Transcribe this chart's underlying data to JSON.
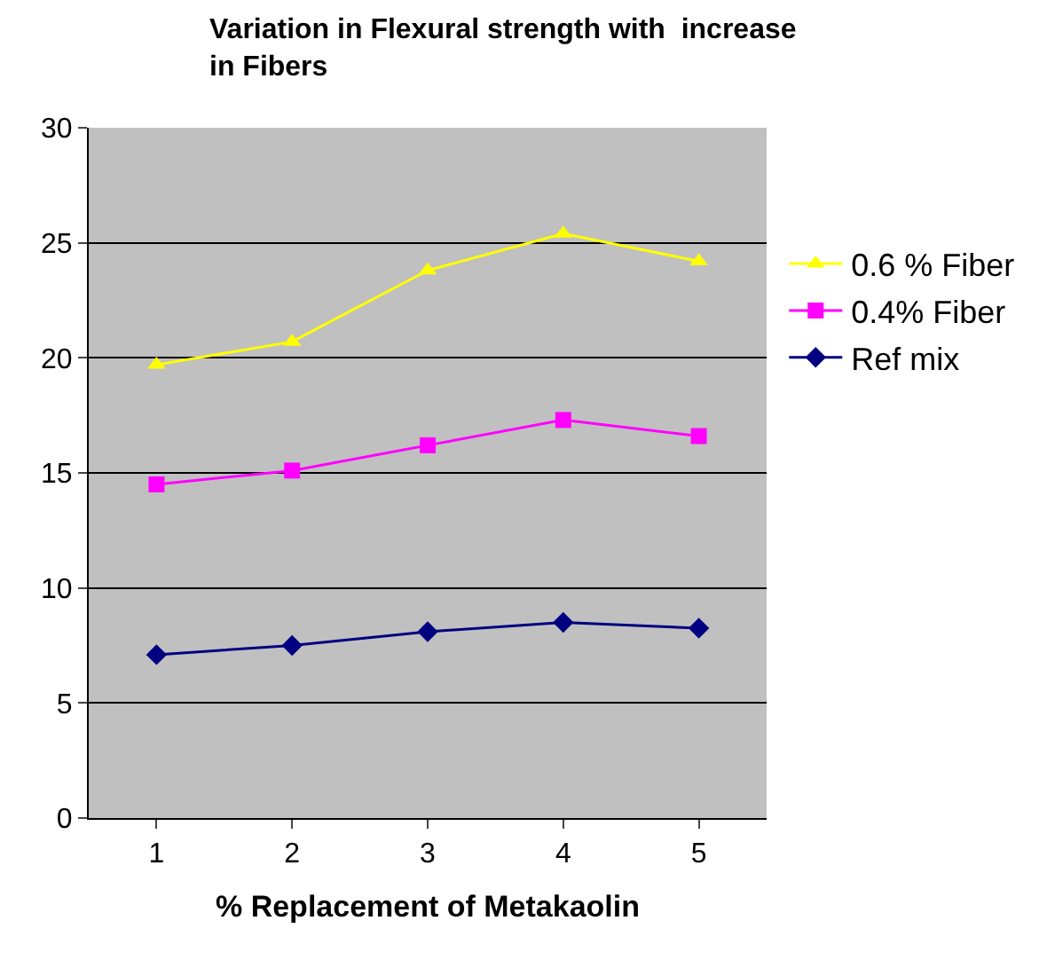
{
  "chart_data": {
    "type": "line",
    "title": "Variation in Flexural strength with  increase in Fibers",
    "xlabel": "% Replacement of Metakaolin",
    "categories": [
      "1",
      "2",
      "3",
      "4",
      "5"
    ],
    "series": [
      {
        "name": "0.6 % Fiber",
        "color": "#ffff00",
        "marker": "triangle",
        "values": [
          19.7,
          20.7,
          23.8,
          25.4,
          24.2
        ]
      },
      {
        "name": "0.4% Fiber",
        "color": "#ff00ff",
        "marker": "square",
        "values": [
          14.5,
          15.1,
          16.2,
          17.3,
          16.6
        ]
      },
      {
        "name": "Ref mix",
        "color": "#000080",
        "marker": "diamond",
        "values": [
          7.1,
          7.5,
          8.1,
          8.5,
          8.25
        ]
      }
    ],
    "ylim": [
      0,
      30
    ],
    "yticks": [
      0,
      5,
      10,
      15,
      20,
      25,
      30
    ],
    "grid": "y",
    "legend": "right"
  }
}
